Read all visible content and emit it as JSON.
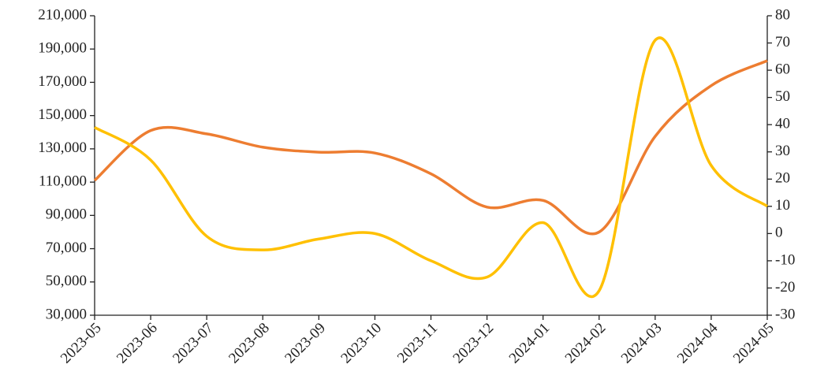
{
  "chart_data": {
    "type": "line",
    "categories": [
      "2023-05",
      "2023-06",
      "2023-07",
      "2023-08",
      "2023-09",
      "2023-10",
      "2023-11",
      "2023-12",
      "2024-01",
      "2024-02",
      "2024-03",
      "2024-04",
      "2024-05"
    ],
    "series": [
      {
        "color": "#ed7d31",
        "values": [
          111000,
          141000,
          139000,
          131000,
          128000,
          127500,
          115000,
          95000,
          99000,
          80000,
          137500,
          168000,
          183000
        ]
      },
      {
        "color": "#ffc000",
        "axis": "y2",
        "values": [
          39,
          27,
          -1,
          -6,
          -2,
          0,
          -10,
          -16,
          4,
          -21,
          71,
          25,
          10
        ]
      }
    ],
    "ylim": [
      30000,
      210000
    ],
    "yticks": [
      {
        "value": 30000,
        "label": "30,000"
      },
      {
        "value": 50000,
        "label": "50,000"
      },
      {
        "value": 70000,
        "label": "70,000"
      },
      {
        "value": 90000,
        "label": "90,000"
      },
      {
        "value": 110000,
        "label": "110,000"
      },
      {
        "value": 130000,
        "label": "130,000"
      },
      {
        "value": 150000,
        "label": "150,000"
      },
      {
        "value": 170000,
        "label": "170,000"
      },
      {
        "value": 190000,
        "label": "190,000"
      },
      {
        "value": 210000,
        "label": "210,000"
      }
    ],
    "y2lim": [
      -30,
      80
    ],
    "y2ticks": [
      -30,
      -20,
      -10,
      0,
      10,
      20,
      30,
      40,
      50,
      60,
      70,
      80
    ],
    "grid": false
  }
}
